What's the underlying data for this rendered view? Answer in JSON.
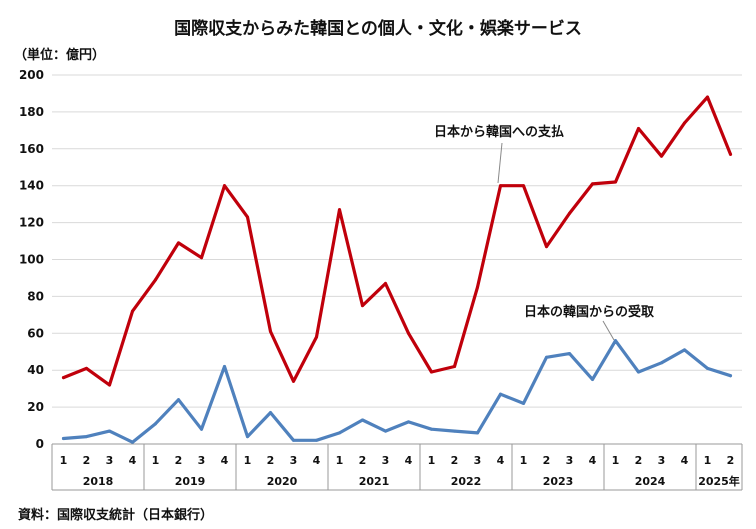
{
  "chart_data": {
    "type": "line",
    "title": "国際収支からみた韓国との個人・文化・娯楽サービス",
    "unit_label": "（単位：億円）",
    "source": "資料：国際収支統計（日本銀行）",
    "ylim": [
      0,
      200
    ],
    "yticks": [
      0,
      20,
      40,
      60,
      80,
      100,
      120,
      140,
      160,
      180,
      200
    ],
    "grid": true,
    "quarter_labels": [
      "1",
      "2",
      "3",
      "4",
      "1",
      "2",
      "3",
      "4",
      "1",
      "2",
      "3",
      "4",
      "1",
      "2",
      "3",
      "4",
      "1",
      "2",
      "3",
      "4",
      "1",
      "2",
      "3",
      "4",
      "1",
      "2",
      "3",
      "4",
      "1",
      "2"
    ],
    "years": [
      {
        "label": "2018",
        "quarters": 4
      },
      {
        "label": "2019",
        "quarters": 4
      },
      {
        "label": "2020",
        "quarters": 4
      },
      {
        "label": "2021",
        "quarters": 4
      },
      {
        "label": "2022",
        "quarters": 4
      },
      {
        "label": "2023",
        "quarters": 4
      },
      {
        "label": "2024",
        "quarters": 4
      },
      {
        "label": "2025年",
        "quarters": 2
      }
    ],
    "series": [
      {
        "name": "日本から韓国への支払",
        "color": "#c0000b",
        "values": [
          36,
          41,
          32,
          72,
          89,
          109,
          101,
          140,
          123,
          61,
          34,
          58,
          127,
          75,
          87,
          60,
          39,
          42,
          85,
          140,
          140,
          107,
          125,
          141,
          142,
          171,
          156,
          174,
          188,
          157
        ]
      },
      {
        "name": "日本の韓国からの受取",
        "color": "#4f81bd",
        "values": [
          3,
          4,
          7,
          1,
          11,
          24,
          8,
          42,
          4,
          17,
          2,
          2,
          6,
          13,
          7,
          12,
          8,
          7,
          6,
          27,
          22,
          47,
          49,
          35,
          56,
          39,
          44,
          51,
          41,
          37
        ]
      }
    ]
  }
}
